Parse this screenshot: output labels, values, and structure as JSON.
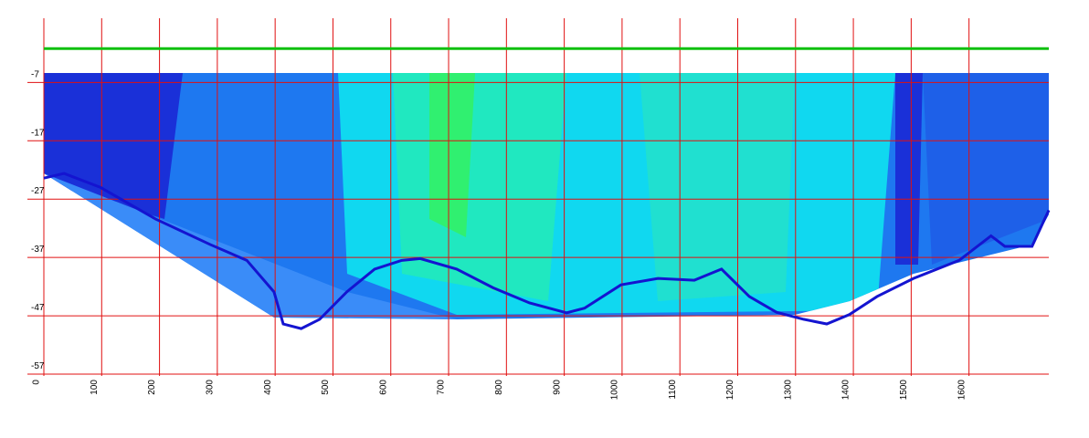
{
  "chart_data": {
    "type": "line",
    "xlim": [
      0,
      1738
    ],
    "ylim": [
      -57,
      4
    ],
    "xticks": [
      0,
      100,
      200,
      300,
      400,
      500,
      600,
      700,
      800,
      900,
      1000,
      1100,
      1200,
      1300,
      1400,
      1500,
      1600
    ],
    "yticks": [
      -7,
      -17,
      -27,
      -37,
      -47,
      -57
    ],
    "grid": true,
    "grid_color": "#e01010",
    "series": [
      {
        "color": "#10c010",
        "x": [
          0,
          1738
        ],
        "values": [
          -1.2,
          -1.2
        ]
      },
      {
        "color": "#1414d0",
        "x": [
          0,
          35,
          98,
          193,
          288,
          351,
          398,
          414,
          445,
          477,
          524,
          572,
          619,
          651,
          714,
          777,
          840,
          904,
          935,
          998,
          1062,
          1125,
          1172,
          1220,
          1267,
          1314,
          1354,
          1393,
          1441,
          1504,
          1583,
          1638,
          1662,
          1709,
          1738
        ],
        "values": [
          -23.4,
          -22.6,
          -25,
          -30.4,
          -34.8,
          -37.5,
          -42.9,
          -48.4,
          -49.2,
          -47.6,
          -42.9,
          -39,
          -37.5,
          -37.2,
          -39,
          -42.2,
          -44.8,
          -46.5,
          -45.7,
          -41.7,
          -40.6,
          -40.9,
          -39,
          -43.7,
          -46.4,
          -47.6,
          -48.4,
          -46.8,
          -43.7,
          -40.6,
          -37.5,
          -33.3,
          -35.1,
          -35.1,
          -28.9
        ]
      }
    ]
  }
}
